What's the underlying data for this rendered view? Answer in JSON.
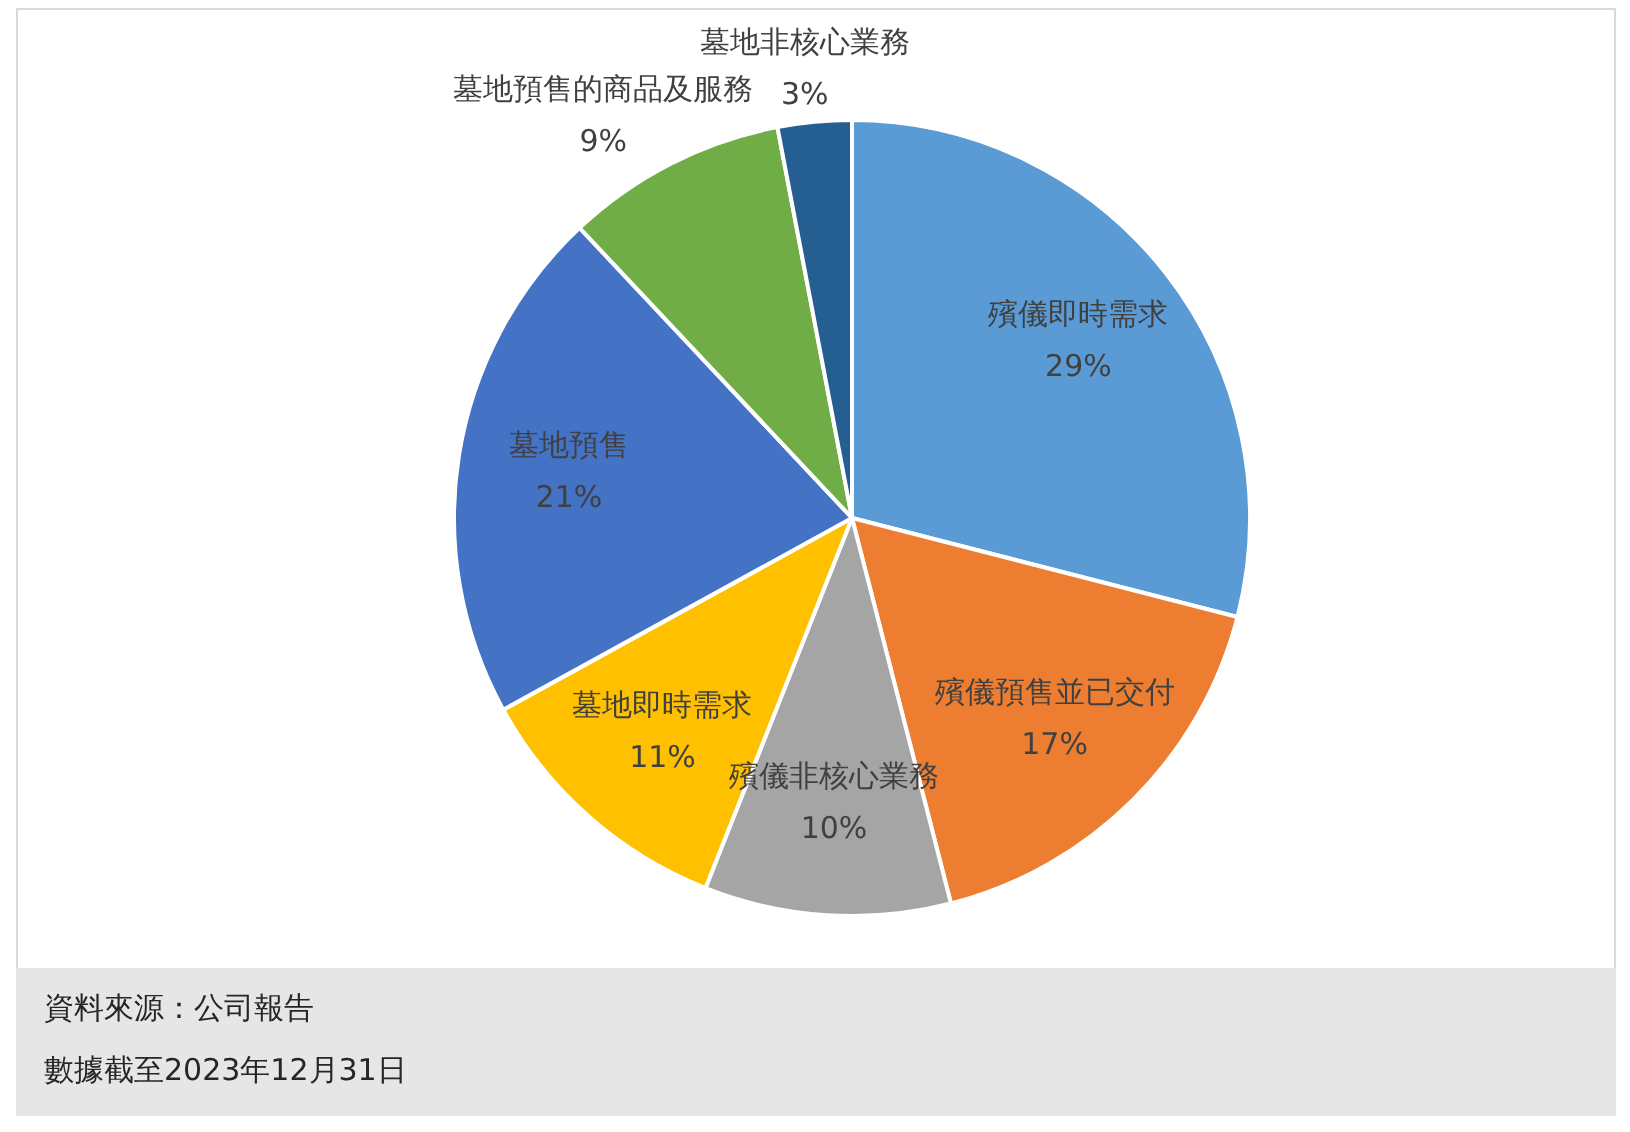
{
  "chart_data": {
    "type": "pie",
    "categories": [
      "殯儀即時需求",
      "殯儀預售並已交付",
      "殯儀非核心業務",
      "墓地即時需求",
      "墓地預售",
      "墓地預售的商品及服務",
      "墓地非核心業務"
    ],
    "values": [
      29,
      17,
      10,
      11,
      21,
      9,
      3
    ],
    "colors": [
      "#5b9bd5",
      "#ed7d31",
      "#a5a5a5",
      "#ffc000",
      "#4472c4",
      "#70ad47",
      "#255e91"
    ],
    "value_labels": [
      "29%",
      "17%",
      "10%",
      "11%",
      "21%",
      "9%",
      "3%"
    ],
    "annotations": [
      "資料來源：公司報告",
      "數據截至2023年12月31日"
    ]
  }
}
